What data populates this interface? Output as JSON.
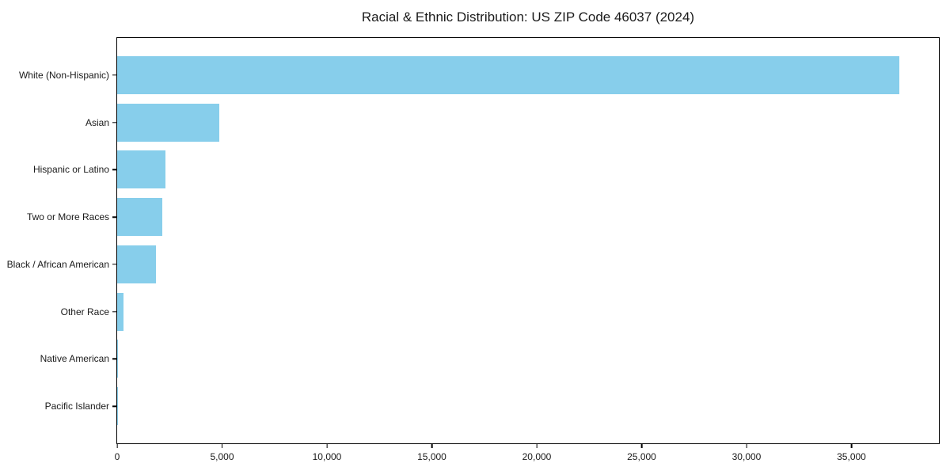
{
  "title": "Racial & Ethnic Distribution: US ZIP Code 46037 (2024)",
  "colors": {
    "bar": "#87CEEB",
    "axis": "#000000",
    "background": "#FFFFFF"
  },
  "chart_data": {
    "type": "bar",
    "orientation": "horizontal",
    "title": "Racial & Ethnic Distribution: US ZIP Code 46037 (2024)",
    "categories": [
      "White (Non-Hispanic)",
      "Asian",
      "Hispanic or Latino",
      "Two or More Races",
      "Black / African American",
      "Other Race",
      "Native American",
      "Pacific Islander"
    ],
    "values": [
      37280,
      4870,
      2300,
      2150,
      1850,
      320,
      40,
      15
    ],
    "xlabel": "",
    "ylabel": "",
    "xlim": [
      0,
      39170
    ],
    "xticks": [
      0,
      5000,
      10000,
      15000,
      20000,
      25000,
      30000,
      35000
    ],
    "xtick_labels": [
      "0",
      "5,000",
      "10,000",
      "15,000",
      "20,000",
      "25,000",
      "30,000",
      "35,000"
    ],
    "grid": false,
    "legend": null,
    "bar_color": "#87CEEB"
  }
}
